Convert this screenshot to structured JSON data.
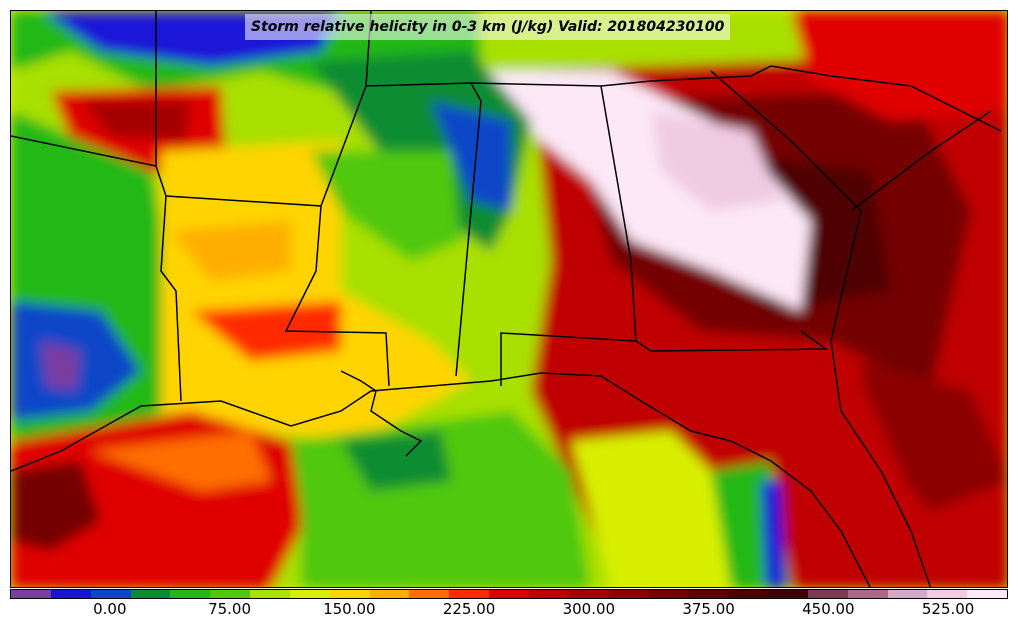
{
  "title": "Storm relative helicity in 0-3 km (J/kg) Valid: 201804230100",
  "colorbar": {
    "colors": [
      "#7a3da0",
      "#1a12d8",
      "#0a46c8",
      "#0a8c32",
      "#22b818",
      "#50c810",
      "#a8e000",
      "#d8f000",
      "#ffd400",
      "#ffae00",
      "#ff6e00",
      "#ff2a00",
      "#e00000",
      "#c00000",
      "#a40000",
      "#8c0000",
      "#740000",
      "#600000",
      "#500000",
      "#420000",
      "#7a3a50",
      "#a86a86",
      "#d4a8c8",
      "#f0cce4",
      "#fde8f6"
    ],
    "tick_labels": [
      "0.00",
      "75.00",
      "150.00",
      "225.00",
      "300.00",
      "375.00",
      "450.00",
      "525.00"
    ]
  }
}
